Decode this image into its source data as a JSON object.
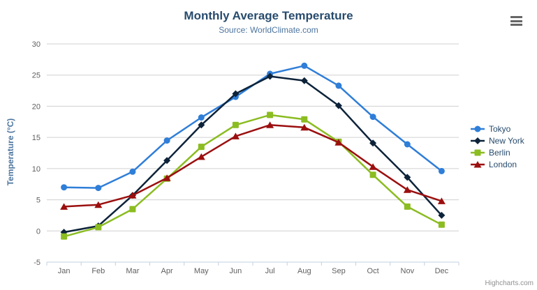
{
  "chart_data": {
    "type": "line",
    "title": "Monthly Average Temperature",
    "subtitle": "Source: WorldClimate.com",
    "xlabel": "",
    "ylabel": "Temperature (°C)",
    "ylim": [
      -5,
      30
    ],
    "ytick_step": 5,
    "yticks": [
      30,
      25,
      20,
      15,
      10,
      5,
      0,
      -5
    ],
    "grid": true,
    "legend_position": "right",
    "categories": [
      "Jan",
      "Feb",
      "Mar",
      "Apr",
      "May",
      "Jun",
      "Jul",
      "Aug",
      "Sep",
      "Oct",
      "Nov",
      "Dec"
    ],
    "series": [
      {
        "name": "Tokyo",
        "color": "#2f7ed8",
        "marker": "circle",
        "values": [
          7.0,
          6.9,
          9.5,
          14.5,
          18.2,
          21.5,
          25.2,
          26.5,
          23.3,
          18.3,
          13.9,
          9.6
        ]
      },
      {
        "name": "New York",
        "color": "#0d233a",
        "marker": "diamond",
        "values": [
          -0.2,
          0.8,
          5.7,
          11.3,
          17.0,
          22.0,
          24.8,
          24.1,
          20.1,
          14.1,
          8.6,
          2.5
        ]
      },
      {
        "name": "Berlin",
        "color": "#8bbc21",
        "marker": "square",
        "values": [
          -0.9,
          0.6,
          3.5,
          8.4,
          13.5,
          17.0,
          18.6,
          17.9,
          14.3,
          9.0,
          3.9,
          1.0
        ]
      },
      {
        "name": "London",
        "color": "#9b0f0f",
        "marker": "triangle",
        "values": [
          3.9,
          4.2,
          5.7,
          8.5,
          11.9,
          15.2,
          17.0,
          16.6,
          14.2,
          10.3,
          6.6,
          4.8
        ]
      }
    ]
  },
  "colors": {
    "title": "#274b6d",
    "subtitle": "#4d759e",
    "axis_label": "#606060",
    "grid_line": "#d0d0d0",
    "axis_line": "#c0d0e0",
    "legend_text": "#274b6d"
  },
  "credits": {
    "label": "Highcharts.com"
  }
}
